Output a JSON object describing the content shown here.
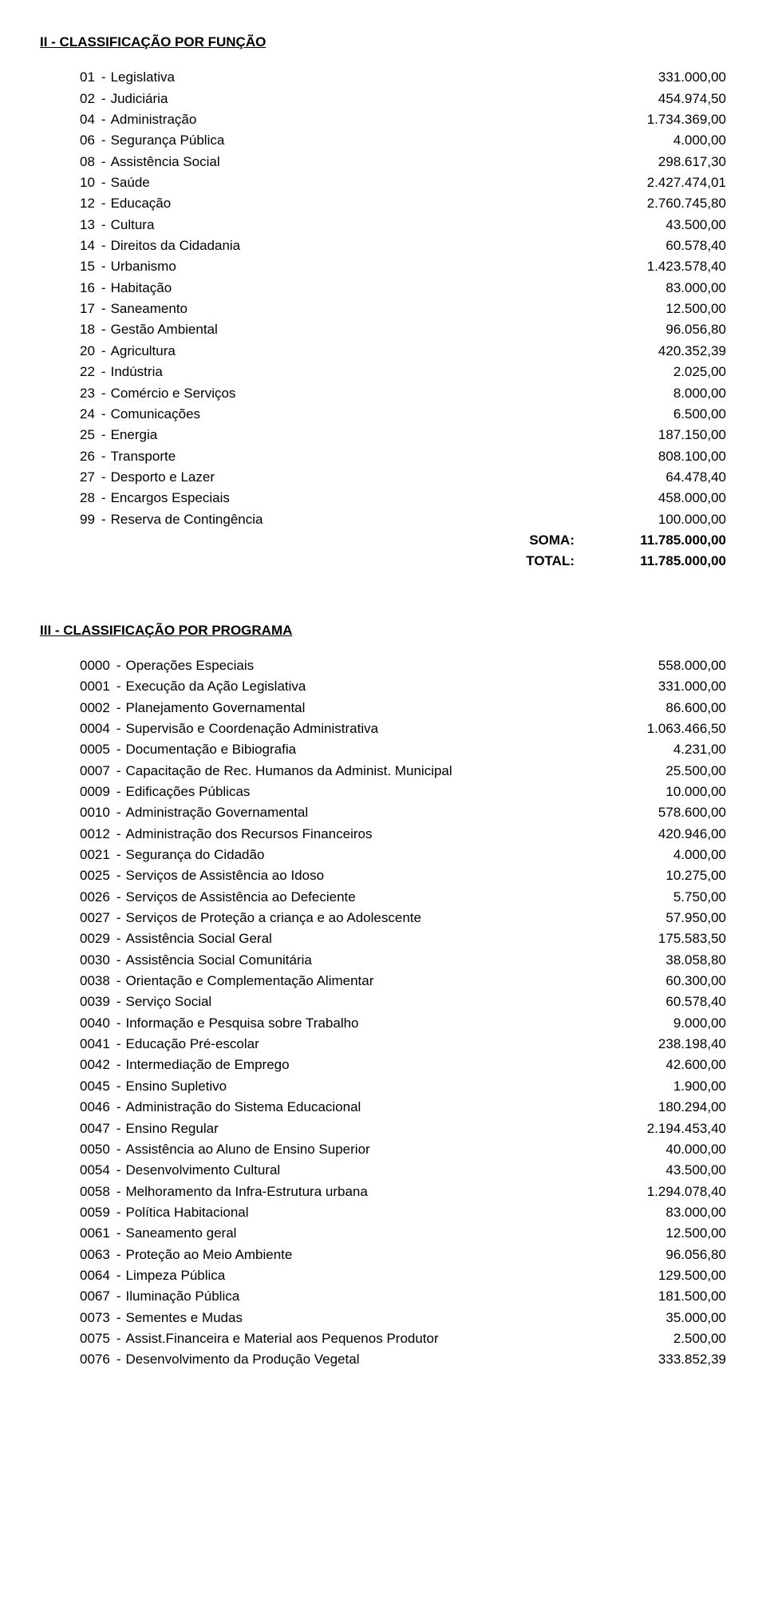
{
  "section2": {
    "title": "II - CLASSIFICAÇÃO POR FUNÇÃO",
    "rows": [
      {
        "code": "01",
        "label": "Legislativa",
        "value": "331.000,00"
      },
      {
        "code": "02",
        "label": "Judiciária",
        "value": "454.974,50"
      },
      {
        "code": "04",
        "label": "Administração",
        "value": "1.734.369,00"
      },
      {
        "code": "06",
        "label": "Segurança Pública",
        "value": "4.000,00"
      },
      {
        "code": "08",
        "label": "Assistência Social",
        "value": "298.617,30"
      },
      {
        "code": "10",
        "label": "Saúde",
        "value": "2.427.474,01"
      },
      {
        "code": "12",
        "label": "Educação",
        "value": "2.760.745,80"
      },
      {
        "code": "13",
        "label": "Cultura",
        "value": "43.500,00"
      },
      {
        "code": "14",
        "label": "Direitos da Cidadania",
        "value": "60.578,40"
      },
      {
        "code": "15",
        "label": "Urbanismo",
        "value": "1.423.578,40"
      },
      {
        "code": "16",
        "label": "Habitação",
        "value": "83.000,00"
      },
      {
        "code": "17",
        "label": "Saneamento",
        "value": "12.500,00"
      },
      {
        "code": "18",
        "label": "Gestão Ambiental",
        "value": "96.056,80"
      },
      {
        "code": "20",
        "label": "Agricultura",
        "value": "420.352,39"
      },
      {
        "code": "22",
        "label": "Indústria",
        "value": "2.025,00"
      },
      {
        "code": "23",
        "label": "Comércio e Serviços",
        "value": "8.000,00"
      },
      {
        "code": "24",
        "label": "Comunicações",
        "value": "6.500,00"
      },
      {
        "code": "25",
        "label": "Energia",
        "value": "187.150,00"
      },
      {
        "code": "26",
        "label": "Transporte",
        "value": "808.100,00"
      },
      {
        "code": "27",
        "label": "Desporto e Lazer",
        "value": "64.478,40"
      },
      {
        "code": "28",
        "label": "Encargos Especiais",
        "value": "458.000,00"
      },
      {
        "code": "99",
        "label": "Reserva de Contingência",
        "value": "100.000,00"
      }
    ],
    "soma_label": "SOMA:",
    "soma_value": "11.785.000,00",
    "total_label": "TOTAL:",
    "total_value": "11.785.000,00"
  },
  "section3": {
    "title": "III - CLASSIFICAÇÃO POR PROGRAMA",
    "rows": [
      {
        "code": "0000",
        "label": "Operações Especiais",
        "value": "558.000,00"
      },
      {
        "code": "0001",
        "label": "Execução da Ação Legislativa",
        "value": "331.000,00"
      },
      {
        "code": "0002",
        "label": "Planejamento Governamental",
        "value": "86.600,00"
      },
      {
        "code": "0004",
        "label": "Supervisão e Coordenação Administrativa",
        "value": "1.063.466,50"
      },
      {
        "code": "0005",
        "label": "Documentação e Bibiografia",
        "value": "4.231,00"
      },
      {
        "code": "0007",
        "label": "Capacitação de Rec. Humanos da Administ. Municipal",
        "value": "25.500,00"
      },
      {
        "code": "0009",
        "label": "Edificações Públicas",
        "value": "10.000,00"
      },
      {
        "code": "0010",
        "label": "Administração Governamental",
        "value": "578.600,00"
      },
      {
        "code": "0012",
        "label": "Administração dos Recursos Financeiros",
        "value": "420.946,00"
      },
      {
        "code": "0021",
        "label": "Segurança do Cidadão",
        "value": "4.000,00"
      },
      {
        "code": "0025",
        "label": "Serviços de Assistência ao Idoso",
        "value": "10.275,00"
      },
      {
        "code": "0026",
        "label": "Serviços de Assistência ao Defeciente",
        "value": "5.750,00"
      },
      {
        "code": "0027",
        "label": "Serviços de Proteção a criança e ao Adolescente",
        "value": "57.950,00"
      },
      {
        "code": "0029",
        "label": "Assistência Social Geral",
        "value": "175.583,50"
      },
      {
        "code": "0030",
        "label": "Assistência Social Comunitária",
        "value": "38.058,80"
      },
      {
        "code": "0038",
        "label": "Orientação e Complementação Alimentar",
        "value": "60.300,00"
      },
      {
        "code": "0039",
        "label": "Serviço Social",
        "value": "60.578,40"
      },
      {
        "code": "0040",
        "label": "Informação e Pesquisa sobre Trabalho",
        "value": "9.000,00"
      },
      {
        "code": "0041",
        "label": "Educação Pré-escolar",
        "value": "238.198,40"
      },
      {
        "code": "0042",
        "label": "Intermediação de Emprego",
        "value": "42.600,00"
      },
      {
        "code": "0045",
        "label": "Ensino Supletivo",
        "value": "1.900,00"
      },
      {
        "code": "0046",
        "label": "Administração do Sistema Educacional",
        "value": "180.294,00"
      },
      {
        "code": "0047",
        "label": "Ensino Regular",
        "value": "2.194.453,40"
      },
      {
        "code": "0050",
        "label": "Assistência ao Aluno de Ensino Superior",
        "value": "40.000,00"
      },
      {
        "code": "0054",
        "label": "Desenvolvimento Cultural",
        "value": "43.500,00"
      },
      {
        "code": "0058",
        "label": "Melhoramento da Infra-Estrutura urbana",
        "value": "1.294.078,40"
      },
      {
        "code": "0059",
        "label": "Política Habitacional",
        "value": "83.000,00"
      },
      {
        "code": "0061",
        "label": "Saneamento geral",
        "value": "12.500,00"
      },
      {
        "code": "0063",
        "label": "Proteção ao Meio Ambiente",
        "value": "96.056,80"
      },
      {
        "code": "0064",
        "label": "Limpeza Pública",
        "value": "129.500,00"
      },
      {
        "code": "0067",
        "label": "Iluminação Pública",
        "value": "181.500,00"
      },
      {
        "code": "0073",
        "label": "Sementes e Mudas",
        "value": "35.000,00"
      },
      {
        "code": "0075",
        "label": "Assist.Financeira e Material aos Pequenos Produtor",
        "value": "2.500,00"
      },
      {
        "code": "0076",
        "label": "Desenvolvimento da Produção Vegetal",
        "value": "333.852,39"
      }
    ]
  }
}
